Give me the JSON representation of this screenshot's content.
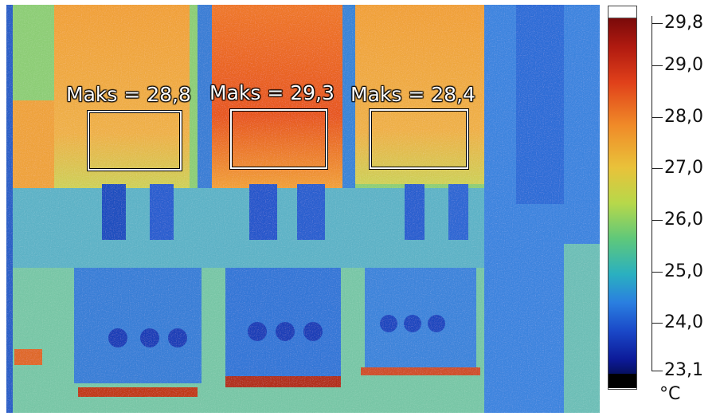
{
  "image": {
    "description_colors": {
      "hot": "#e8581f",
      "warm": "#f2a23a",
      "mid": "#9fd36a",
      "cool": "#2f86dd",
      "cold": "#1b3fbf"
    }
  },
  "measurements": [
    {
      "label": "Maks = 28,8"
    },
    {
      "label": "Maks = 29,3"
    },
    {
      "label": "Maks = 28,4"
    }
  ],
  "scale": {
    "ticks": [
      "29,8",
      "29,0",
      "28,0",
      "27,0",
      "26,0",
      "25,0",
      "24,0",
      "23,1"
    ],
    "unit": "°C",
    "max": 29.8,
    "min": 23.1
  }
}
